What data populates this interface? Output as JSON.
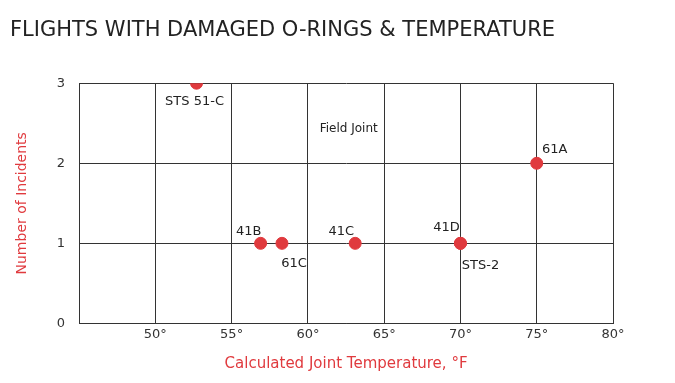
{
  "chart_data": {
    "type": "scatter",
    "title": "FLIGHTS WITH DAMAGED O-RINGS & TEMPERATURE",
    "xlabel": "Calculated Joint Temperature, °F",
    "ylabel": "Number of Incidents",
    "annotations": [
      "Field Joint"
    ],
    "x": [
      52.7,
      56.9,
      58.3,
      63.1,
      70,
      70,
      75
    ],
    "values": [
      3,
      1,
      1,
      1,
      1,
      1,
      2
    ],
    "point_labels": [
      "STS 51-C",
      "41B",
      "61C",
      "41C",
      "41D",
      "STS-2",
      "61A"
    ],
    "color": "#e03a3e",
    "marker": "circle",
    "xlim": [
      45,
      80
    ],
    "xticks": [
      {
        "value": 50,
        "label": "50°"
      },
      {
        "value": 55,
        "label": "55°"
      },
      {
        "value": 60,
        "label": "60°"
      },
      {
        "value": 65,
        "label": "65°"
      },
      {
        "value": 70,
        "label": "70°"
      },
      {
        "value": 75,
        "label": "75°"
      },
      {
        "value": 80,
        "label": "80°"
      }
    ],
    "ylim": [
      0,
      3
    ],
    "yticks": [
      0,
      1,
      2,
      3
    ],
    "grid": true
  }
}
